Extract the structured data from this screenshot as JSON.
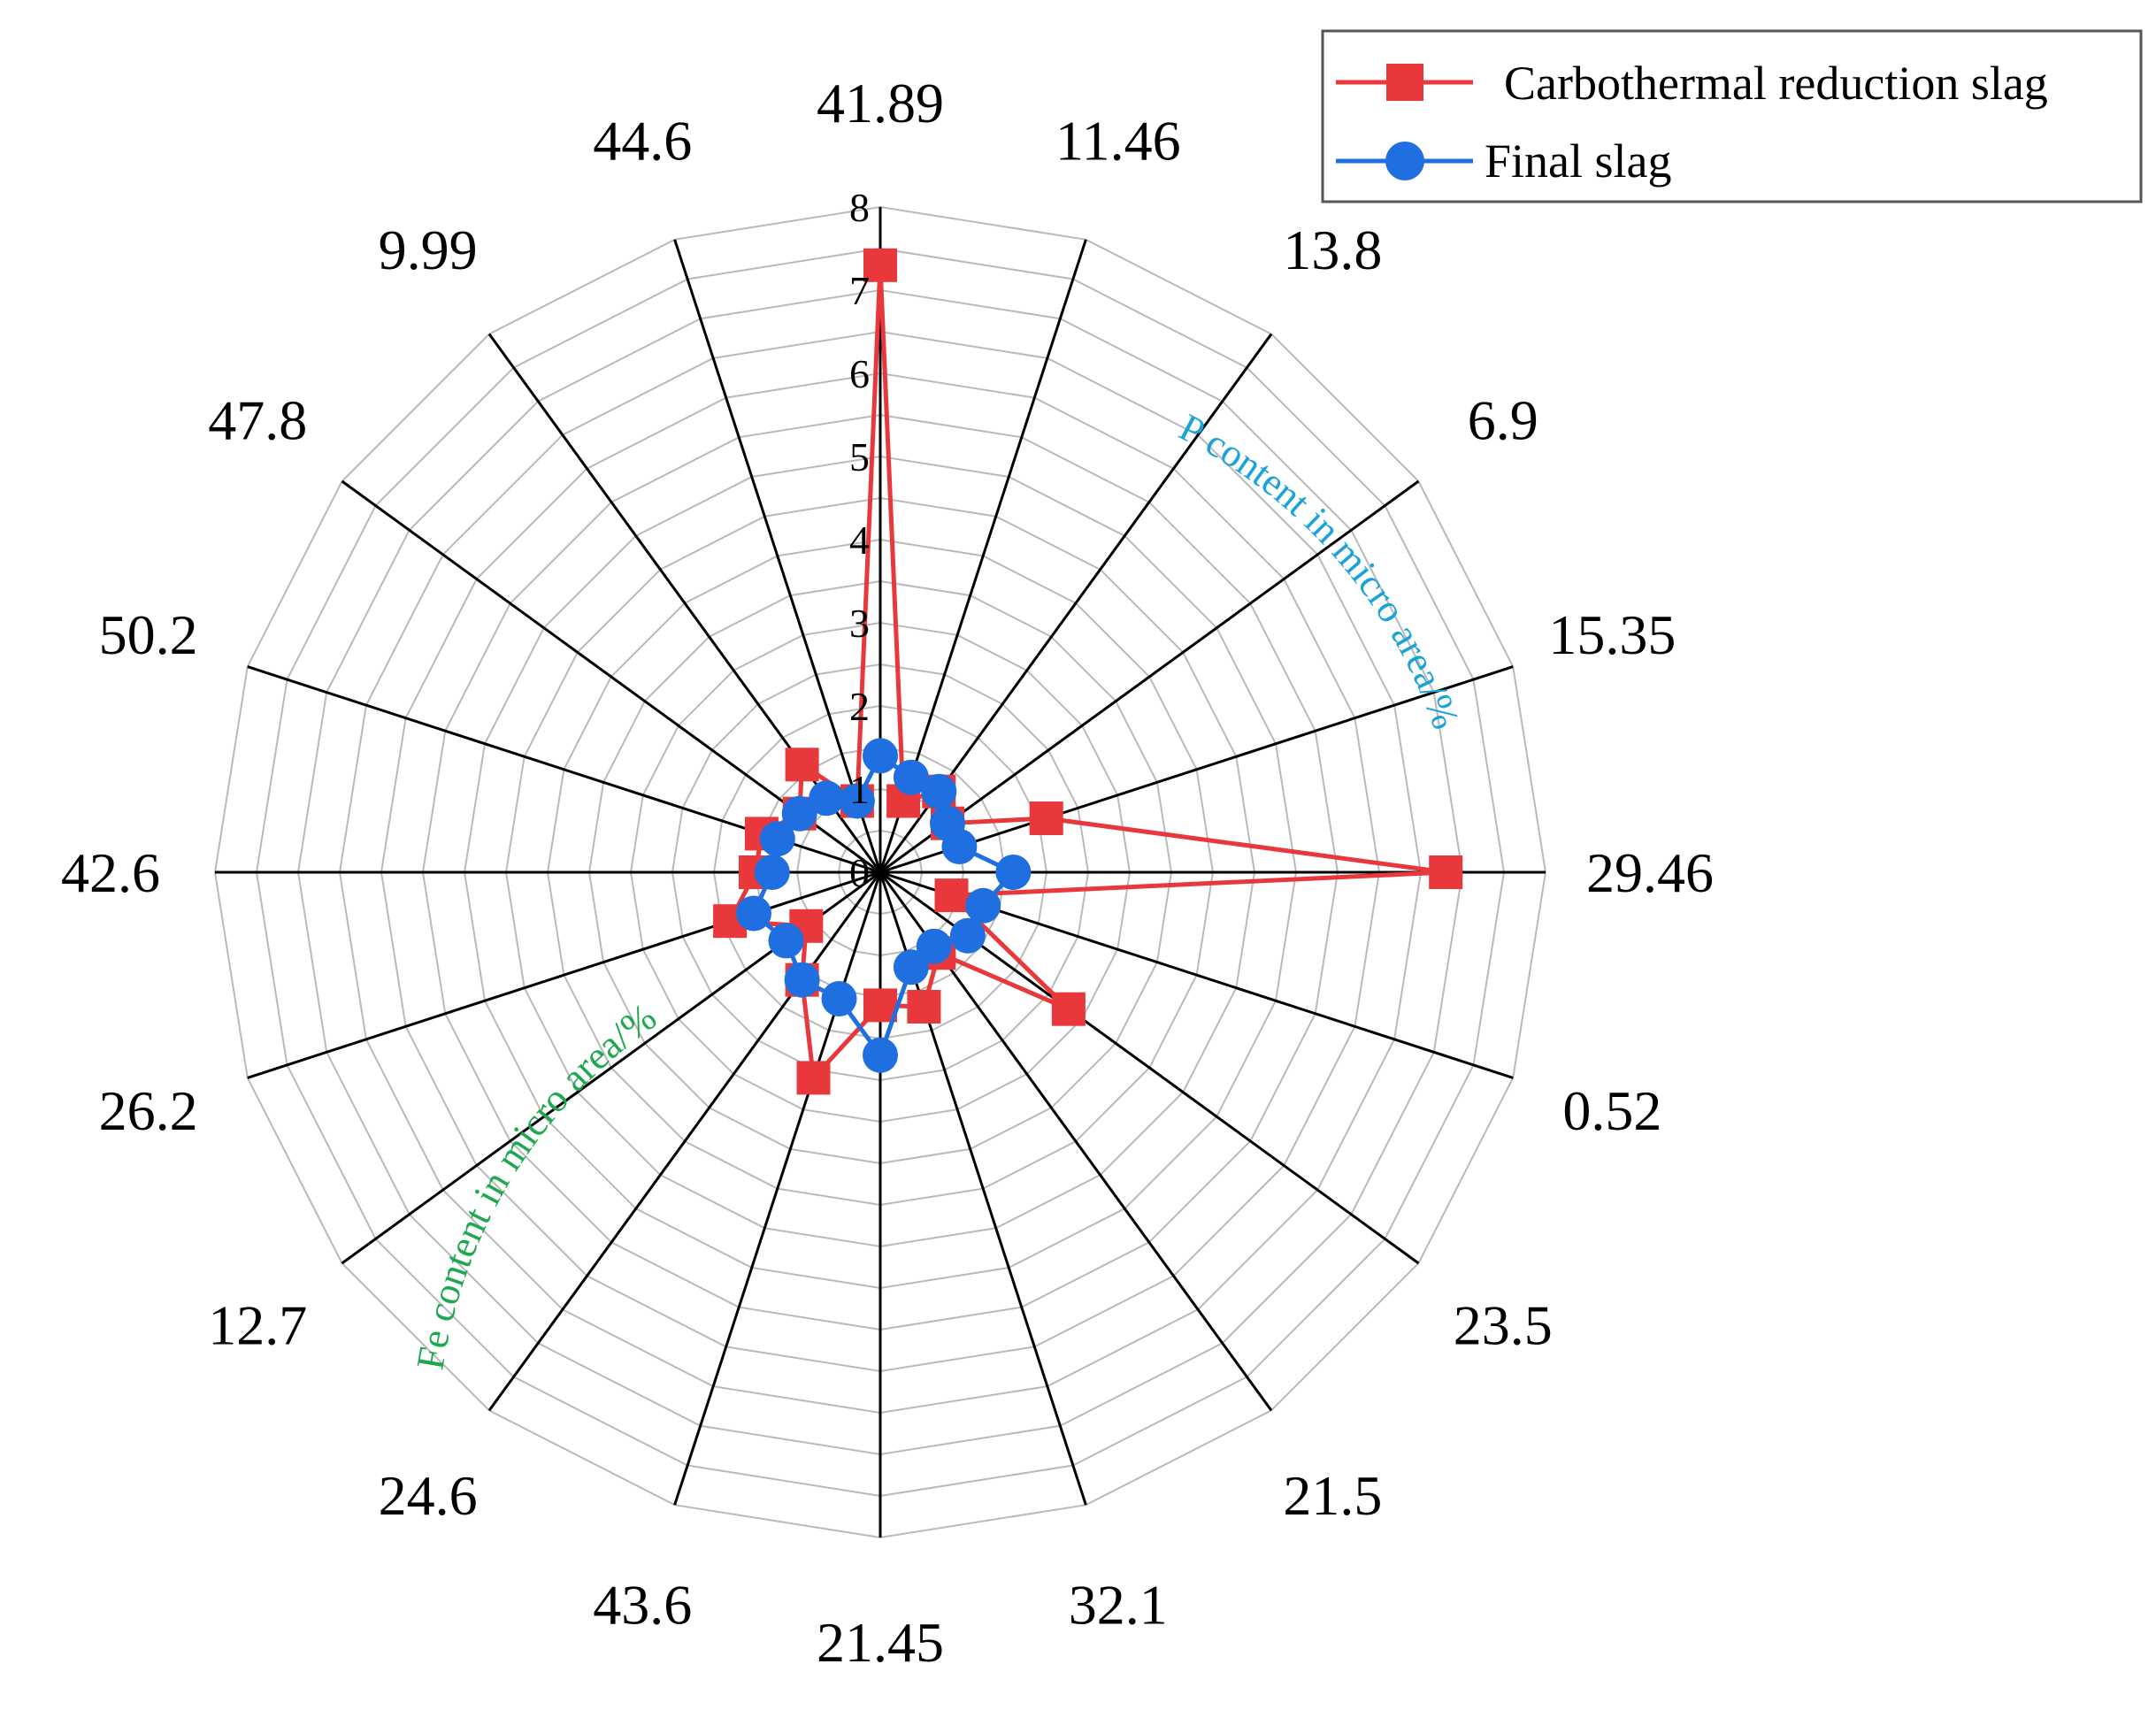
{
  "chart_data": {
    "type": "radar",
    "title": "",
    "categories": [
      "41.89",
      "11.46",
      "13.8",
      "6.9",
      "15.35",
      "29.46",
      "0.52",
      "23.5",
      "21.5",
      "32.1",
      "21.45",
      "43.6",
      "24.6",
      "12.7",
      "26.2",
      "42.6",
      "50.2",
      "47.8",
      "9.99",
      "44.6"
    ],
    "radial_range": [
      0,
      8
    ],
    "radial_ticks": [
      "0",
      "1",
      "2",
      "3",
      "4",
      "5",
      "6",
      "7",
      "8"
    ],
    "grid": true,
    "series": [
      {
        "name": "Carbothermal reduction slag",
        "color": "#e8383c",
        "marker": "square",
        "values": [
          7.3,
          0.9,
          1.2,
          1.0,
          2.1,
          6.8,
          0.9,
          2.8,
          1.2,
          1.7,
          1.6,
          2.6,
          1.6,
          1.1,
          1.9,
          1.5,
          1.5,
          1.2,
          1.6,
          0.9
        ]
      },
      {
        "name": "Final slag",
        "color": "#1f6fe0",
        "marker": "circle",
        "values": [
          1.4,
          1.2,
          1.2,
          1.0,
          1.0,
          1.6,
          1.3,
          1.3,
          1.1,
          1.2,
          2.2,
          1.6,
          1.6,
          1.4,
          1.6,
          1.3,
          1.3,
          1.2,
          1.1,
          0.9
        ]
      }
    ],
    "annotations": [
      {
        "text": "P content in micro area/%",
        "color": "#1aa3d8"
      },
      {
        "text": "Fe content in micro area/%",
        "color": "#1fa84f"
      }
    ],
    "legend": {
      "placement": "top-right"
    }
  }
}
